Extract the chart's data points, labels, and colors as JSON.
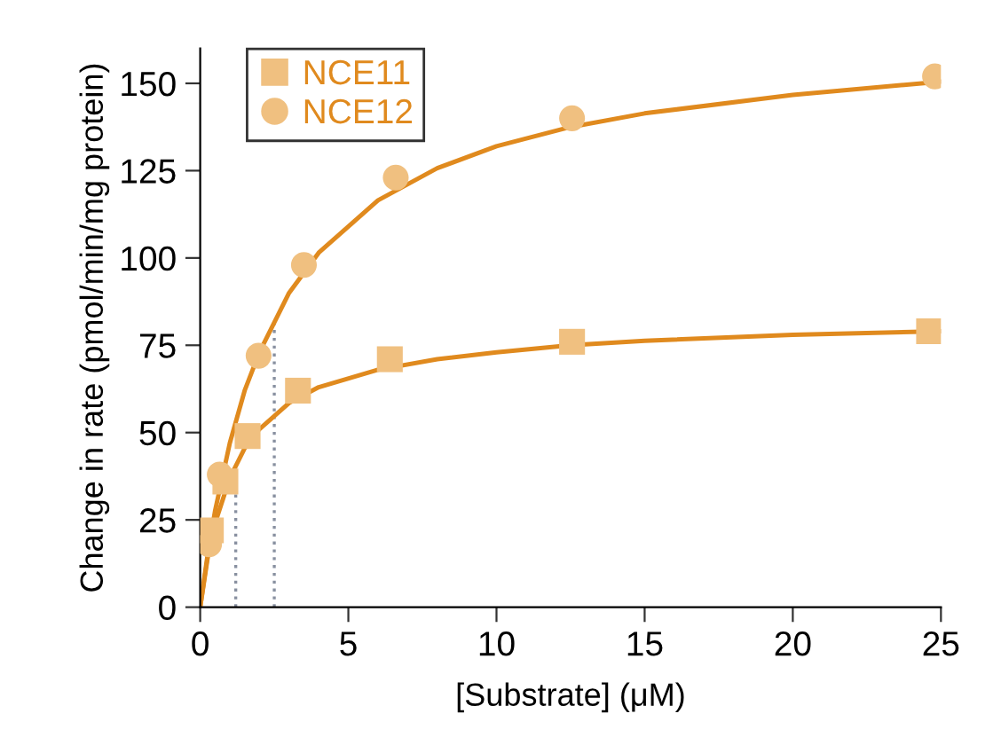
{
  "chart_data": {
    "type": "scatter",
    "xlabel": "[Substrate] (μM)",
    "ylabel": "Change in rate (pmol/min/mg protein)",
    "xlim": [
      0,
      25
    ],
    "xticks": [
      0,
      5,
      10,
      15,
      20,
      25
    ],
    "ylim": [
      0,
      160
    ],
    "yticks": [
      0,
      25,
      50,
      75,
      100,
      125,
      150
    ],
    "grid": false,
    "legend": "top left",
    "series": [
      {
        "name": "NCE11",
        "marker": "square",
        "color": "#f0c080",
        "x": [
          0.36,
          0.85,
          1.6,
          3.3,
          6.4,
          12.55,
          24.6
        ],
        "values": [
          22,
          36,
          49,
          62,
          71,
          76,
          79
        ]
      },
      {
        "name": "NCE12",
        "marker": "circle",
        "color": "#f0c080",
        "x": [
          0.3,
          0.66,
          1.97,
          3.5,
          6.6,
          12.55,
          24.8
        ],
        "values": [
          18,
          38,
          72,
          98,
          123,
          140,
          152
        ]
      },
      {
        "type": "line",
        "color": "#e08a1e",
        "line_style": "solid",
        "x": [
          0,
          0.25,
          0.5,
          1,
          1.5,
          2,
          3,
          4,
          6,
          8,
          10,
          12.5,
          15,
          20,
          25
        ],
        "values": [
          0,
          14,
          24,
          37,
          45.5,
          51,
          58.5,
          63,
          68,
          71,
          73,
          75,
          76.3,
          78,
          79
        ]
      },
      {
        "type": "line",
        "color": "#e08a1e",
        "line_style": "solid",
        "x": [
          0,
          0.25,
          0.5,
          1,
          1.5,
          2,
          3,
          4,
          6,
          8,
          10,
          12.5,
          15,
          20,
          25
        ],
        "values": [
          0,
          15,
          27.5,
          47,
          62,
          73,
          90,
          101.5,
          116.5,
          125.7,
          132,
          137.5,
          141.4,
          146.7,
          150.5
        ]
      }
    ],
    "ref_lines": [
      {
        "axis": "x",
        "value": 1.2,
        "color": "#8890a0",
        "line_style": "dotted"
      },
      {
        "axis": "x",
        "value": 2.5,
        "color": "#8890a0",
        "line_style": "dotted"
      }
    ]
  }
}
